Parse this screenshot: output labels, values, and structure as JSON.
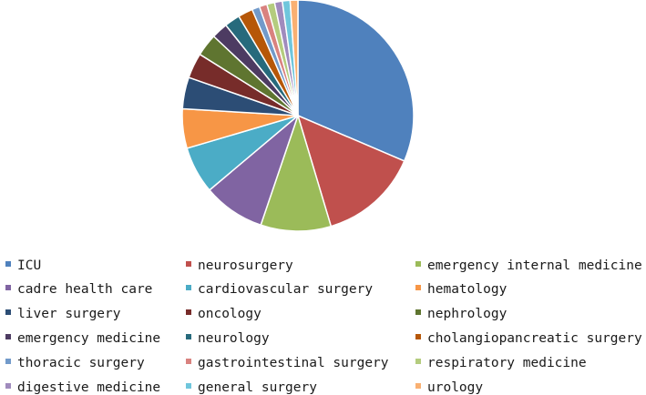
{
  "chart_data": {
    "type": "pie",
    "title": "",
    "legend_position": "bottom",
    "slices": [
      {
        "label": "ICU",
        "value": 32.0,
        "color": "#4f81bd"
      },
      {
        "label": "neurosurgery",
        "value": 14.2,
        "color": "#c0504d"
      },
      {
        "label": "emergency internal medicine",
        "value": 10.0,
        "color": "#9bbb59"
      },
      {
        "label": "cadre health care",
        "value": 8.8,
        "color": "#8064a2"
      },
      {
        "label": "cardiovascular surgery",
        "value": 6.7,
        "color": "#4bacc6"
      },
      {
        "label": "hematology",
        "value": 5.6,
        "color": "#f79646"
      },
      {
        "label": "liver surgery",
        "value": 4.5,
        "color": "#2c4d75"
      },
      {
        "label": "oncology",
        "value": 3.6,
        "color": "#772c2a"
      },
      {
        "label": "nephrology",
        "value": 3.2,
        "color": "#5f7530"
      },
      {
        "label": "emergency medicine",
        "value": 2.3,
        "color": "#4d3b62"
      },
      {
        "label": "neurology",
        "value": 2.2,
        "color": "#276a7c"
      },
      {
        "label": "cholangiopancreatic surgery",
        "value": 2.1,
        "color": "#b65708"
      },
      {
        "label": "thoracic surgery",
        "value": 1.1,
        "color": "#729aca"
      },
      {
        "label": "gastrointestinal surgery",
        "value": 1.1,
        "color": "#d9827f"
      },
      {
        "label": "respiratory medicine",
        "value": 1.1,
        "color": "#b4cc7e"
      },
      {
        "label": "digestive medicine",
        "value": 1.1,
        "color": "#a08bbd"
      },
      {
        "label": "general surgery",
        "value": 1.1,
        "color": "#6fc6dc"
      },
      {
        "label": "urology",
        "value": 1.1,
        "color": "#f9b072"
      }
    ]
  }
}
